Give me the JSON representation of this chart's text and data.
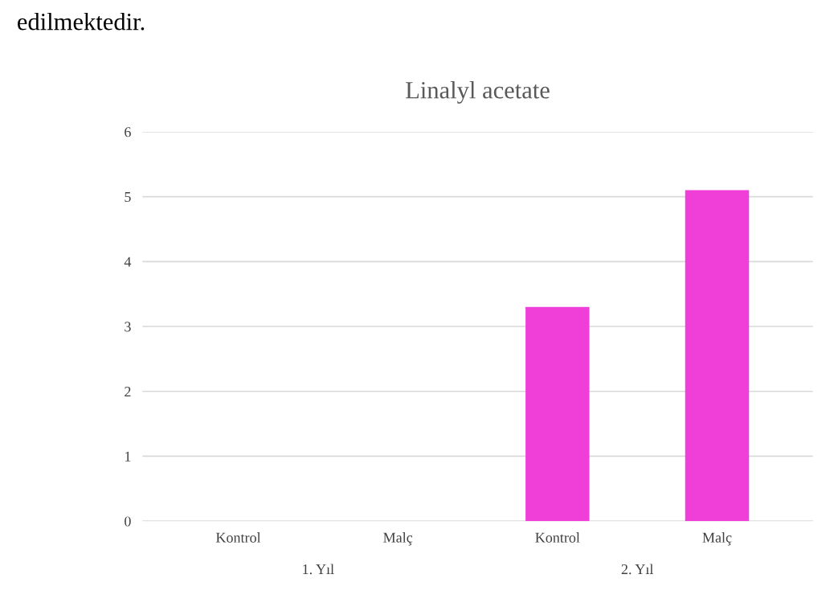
{
  "chart_data": {
    "type": "bar",
    "title": "Linalyl acetate",
    "categories": [
      "Kontrol",
      "Malç",
      "Kontrol",
      "Malç"
    ],
    "values": [
      0,
      0,
      3.3,
      5.1
    ],
    "color": "#f03fd8",
    "ylim": [
      0,
      6
    ],
    "yticks": [
      0,
      1,
      2,
      3,
      4,
      5,
      6
    ],
    "grid": "y",
    "annotations": [
      "edilmektedir.",
      "1. Yıl",
      "2. Yıl"
    ]
  }
}
